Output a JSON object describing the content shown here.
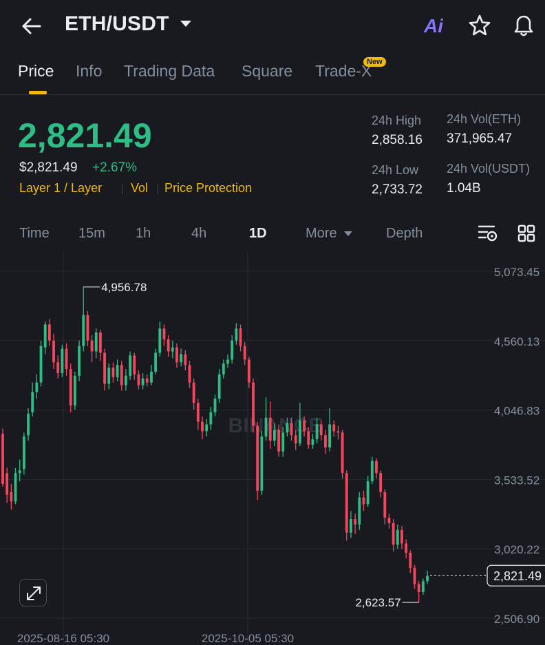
{
  "header": {
    "title": "ETH/USDT",
    "back_icon": "arrow-left-icon",
    "ai_label": "Ai",
    "star_icon": "star-icon",
    "bell_icon": "bell-icon"
  },
  "tabs": [
    {
      "label": "Price",
      "active": true
    },
    {
      "label": "Info",
      "active": false
    },
    {
      "label": "Trading Data",
      "active": false
    },
    {
      "label": "Square",
      "active": false
    },
    {
      "label": "Trade-X",
      "active": false,
      "badge": "New"
    }
  ],
  "price": {
    "last": "2,821.49",
    "usd": "$2,821.49",
    "change": "+2.67%",
    "tags": [
      "Layer 1 / Layer",
      "Vol",
      "Price Protection"
    ]
  },
  "stats": {
    "high_label": "24h High",
    "high_value": "2,858.16",
    "low_label": "24h Low",
    "low_value": "2,733.72",
    "vol_eth_label": "24h Vol(ETH)",
    "vol_eth_value": "371,965.47",
    "vol_usdt_label": "24h Vol(USDT)",
    "vol_usdt_value": "1.04B"
  },
  "intervals": [
    {
      "label": "Time",
      "active": false
    },
    {
      "label": "15m",
      "active": false
    },
    {
      "label": "1h",
      "active": false
    },
    {
      "label": "4h",
      "active": false
    },
    {
      "label": "1D",
      "active": true
    },
    {
      "label": "More",
      "active": false
    },
    {
      "label": "Depth",
      "active": false
    }
  ],
  "colors": {
    "up": "#2ebd85",
    "down": "#f6465d",
    "accent": "#f0b90b",
    "background": "#181a20",
    "muted": "#848e9c"
  },
  "chart_data": {
    "type": "candlestick",
    "y_ticks": [
      "5,073.45",
      "4,560.13",
      "4,046.83",
      "3,533.52",
      "3,020.22",
      "2,506.90"
    ],
    "y_tick_values": [
      5073.45,
      4560.13,
      4046.83,
      3533.52,
      3020.22,
      2506.9
    ],
    "ylim": [
      2506.9,
      5073.45
    ],
    "x_ticks": [
      "2025-08-16 05:30",
      "2025-10-05 05:30"
    ],
    "high_label": "4,956.78",
    "high_value": 4956.78,
    "low_label": "2,623.57",
    "low_value": 2623.57,
    "last_label": "2,821.49",
    "last_value": 2821.49,
    "watermark": "BINANCE",
    "candles": [
      [
        3870,
        3500,
        3910,
        3480
      ],
      [
        3580,
        3420,
        3620,
        3360
      ],
      [
        3440,
        3370,
        3500,
        3310
      ],
      [
        3370,
        3580,
        3620,
        3350
      ],
      [
        3580,
        3600,
        3680,
        3520
      ],
      [
        3610,
        3850,
        3880,
        3570
      ],
      [
        3860,
        4020,
        4060,
        3820
      ],
      [
        4030,
        4180,
        4250,
        4000
      ],
      [
        4180,
        4250,
        4310,
        4130
      ],
      [
        4250,
        4520,
        4560,
        4220
      ],
      [
        4510,
        4680,
        4700,
        4460
      ],
      [
        4680,
        4560,
        4720,
        4520
      ],
      [
        4560,
        4400,
        4610,
        4350
      ],
      [
        4400,
        4320,
        4450,
        4280
      ],
      [
        4320,
        4500,
        4530,
        4290
      ],
      [
        4500,
        4350,
        4540,
        4300
      ],
      [
        4350,
        4080,
        4390,
        4030
      ],
      [
        4080,
        4300,
        4330,
        4050
      ],
      [
        4300,
        4520,
        4560,
        4260
      ],
      [
        4520,
        4750,
        4957,
        4480
      ],
      [
        4750,
        4560,
        4780,
        4520
      ],
      [
        4560,
        4480,
        4600,
        4400
      ],
      [
        4480,
        4620,
        4650,
        4430
      ],
      [
        4620,
        4470,
        4640,
        4410
      ],
      [
        4470,
        4240,
        4500,
        4190
      ],
      [
        4240,
        4360,
        4390,
        4200
      ],
      [
        4360,
        4290,
        4400,
        4250
      ],
      [
        4290,
        4380,
        4420,
        4260
      ],
      [
        4380,
        4230,
        4410,
        4190
      ],
      [
        4230,
        4300,
        4350,
        4190
      ],
      [
        4300,
        4450,
        4480,
        4270
      ],
      [
        4450,
        4310,
        4470,
        4270
      ],
      [
        4310,
        4230,
        4340,
        4200
      ],
      [
        4230,
        4280,
        4320,
        4200
      ],
      [
        4280,
        4250,
        4310,
        4220
      ],
      [
        4250,
        4330,
        4380,
        4230
      ],
      [
        4330,
        4470,
        4500,
        4310
      ],
      [
        4470,
        4650,
        4700,
        4440
      ],
      [
        4650,
        4570,
        4680,
        4520
      ],
      [
        4570,
        4480,
        4600,
        4440
      ],
      [
        4480,
        4510,
        4560,
        4430
      ],
      [
        4510,
        4400,
        4540,
        4360
      ],
      [
        4400,
        4460,
        4500,
        4370
      ],
      [
        4460,
        4380,
        4490,
        4340
      ],
      [
        4380,
        4250,
        4410,
        4210
      ],
      [
        4250,
        4100,
        4280,
        4050
      ],
      [
        4100,
        3960,
        4130,
        3900
      ],
      [
        3960,
        3890,
        4000,
        3830
      ],
      [
        3890,
        3940,
        3980,
        3850
      ],
      [
        3940,
        4030,
        4070,
        3900
      ],
      [
        4030,
        4130,
        4160,
        4000
      ],
      [
        4130,
        4310,
        4350,
        4100
      ],
      [
        4310,
        4390,
        4420,
        4280
      ],
      [
        4390,
        4420,
        4460,
        4360
      ],
      [
        4420,
        4560,
        4600,
        4390
      ],
      [
        4560,
        4650,
        4690,
        4530
      ],
      [
        4650,
        4520,
        4680,
        4480
      ],
      [
        4520,
        4420,
        4550,
        4380
      ],
      [
        4420,
        4250,
        4440,
        4210
      ],
      [
        4250,
        3930,
        4280,
        3880
      ],
      [
        3930,
        3450,
        3960,
        3380
      ],
      [
        3450,
        3850,
        3890,
        3420
      ],
      [
        3850,
        3990,
        4140,
        3820
      ],
      [
        3990,
        3820,
        4110,
        3760
      ],
      [
        3820,
        3900,
        3950,
        3780
      ],
      [
        3900,
        3740,
        3940,
        3700
      ],
      [
        3740,
        3880,
        3920,
        3700
      ],
      [
        3880,
        3950,
        3990,
        3850
      ],
      [
        3950,
        3860,
        3990,
        3820
      ],
      [
        3860,
        3800,
        3900,
        3750
      ],
      [
        3800,
        3970,
        4100,
        3780
      ],
      [
        3970,
        3890,
        4000,
        3850
      ],
      [
        3890,
        3790,
        3920,
        3760
      ],
      [
        3790,
        3830,
        3870,
        3760
      ],
      [
        3830,
        3940,
        3990,
        3800
      ],
      [
        3940,
        3860,
        3970,
        3820
      ],
      [
        3860,
        3770,
        3900,
        3720
      ],
      [
        3770,
        3940,
        4060,
        3740
      ],
      [
        3940,
        3890,
        3970,
        3850
      ],
      [
        3890,
        3880,
        3930,
        3830
      ],
      [
        3880,
        3580,
        3900,
        3540
      ],
      [
        3580,
        3140,
        3600,
        3080
      ],
      [
        3140,
        3240,
        3300,
        3100
      ],
      [
        3240,
        3200,
        3280,
        3130
      ],
      [
        3200,
        3400,
        3440,
        3160
      ],
      [
        3400,
        3350,
        3450,
        3300
      ],
      [
        3350,
        3520,
        3560,
        3330
      ],
      [
        3520,
        3670,
        3700,
        3500
      ],
      [
        3670,
        3580,
        3690,
        3540
      ],
      [
        3580,
        3440,
        3600,
        3400
      ],
      [
        3440,
        3250,
        3460,
        3200
      ],
      [
        3250,
        3210,
        3280,
        3170
      ],
      [
        3210,
        3050,
        3240,
        3000
      ],
      [
        3050,
        3160,
        3200,
        3020
      ],
      [
        3160,
        3060,
        3190,
        3020
      ],
      [
        3060,
        2990,
        3090,
        2950
      ],
      [
        2990,
        2880,
        3010,
        2840
      ],
      [
        2880,
        2760,
        2900,
        2724
      ],
      [
        2760,
        2700,
        2780,
        2624
      ],
      [
        2700,
        2780,
        2800,
        2680
      ],
      [
        2780,
        2820,
        2858,
        2760
      ]
    ]
  }
}
